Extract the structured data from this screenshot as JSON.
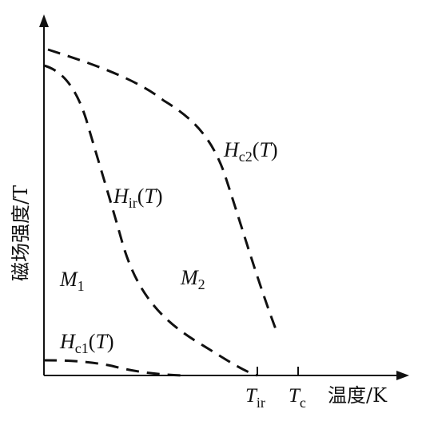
{
  "chart_data": {
    "type": "line",
    "title": "",
    "xlabel": "温度/K",
    "ylabel": "磁场强度/T",
    "grid": false,
    "xticks": [
      {
        "name": "T",
        "sub": "ir"
      },
      {
        "name": "T",
        "sub": "c"
      }
    ],
    "curves": [
      {
        "id": "hc2",
        "name": "H",
        "sub": "c2",
        "arg": "(T)"
      },
      {
        "id": "hir",
        "name": "H",
        "sub": "ir",
        "arg": "(T)"
      },
      {
        "id": "hc1",
        "name": "H",
        "sub": "c1",
        "arg": "(T)"
      }
    ],
    "regions": [
      {
        "name": "M",
        "sub": "1"
      },
      {
        "name": "M",
        "sub": "2"
      }
    ]
  }
}
